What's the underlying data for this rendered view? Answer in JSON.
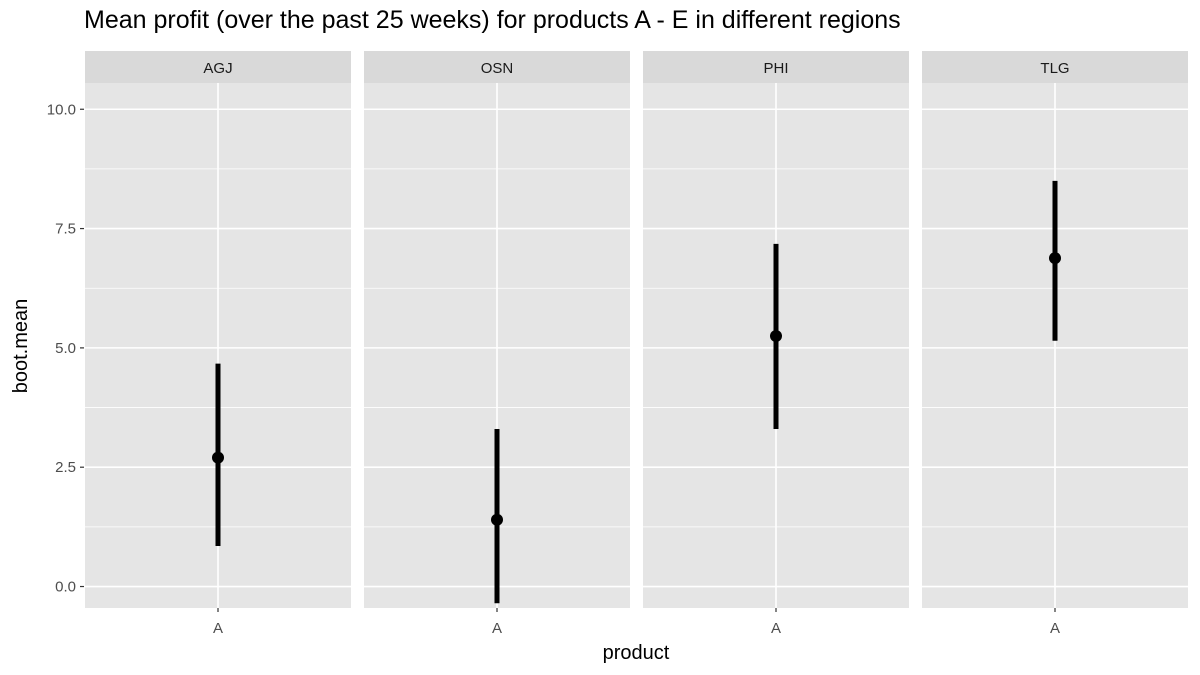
{
  "chart_data": {
    "type": "scatter",
    "title": "Mean profit (over the past 25 weeks) for products A - E in different regions",
    "xlabel": "product",
    "ylabel": "boot.mean",
    "ylim": [
      -0.45,
      10.55
    ],
    "yticks": [
      0,
      2.5,
      5,
      7.5,
      10
    ],
    "ytick_labels": [
      "0.0",
      "2.5",
      "5.0",
      "7.5",
      "10.0"
    ],
    "grid": true,
    "facets": [
      {
        "panel": "AGJ",
        "category": "A",
        "mean": 2.7,
        "lower": 0.85,
        "upper": 4.67
      },
      {
        "panel": "OSN",
        "category": "A",
        "mean": 1.4,
        "lower": -0.35,
        "upper": 3.3
      },
      {
        "panel": "PHI",
        "category": "A",
        "mean": 5.25,
        "lower": 3.3,
        "upper": 7.18
      },
      {
        "panel": "TLG",
        "category": "A",
        "mean": 6.88,
        "lower": 5.15,
        "upper": 8.5
      }
    ],
    "colors": {
      "panel_background": "#e5e5e5",
      "strip_background": "#d9d9d9",
      "grid": "#ffffff",
      "marks": "#000000"
    }
  }
}
